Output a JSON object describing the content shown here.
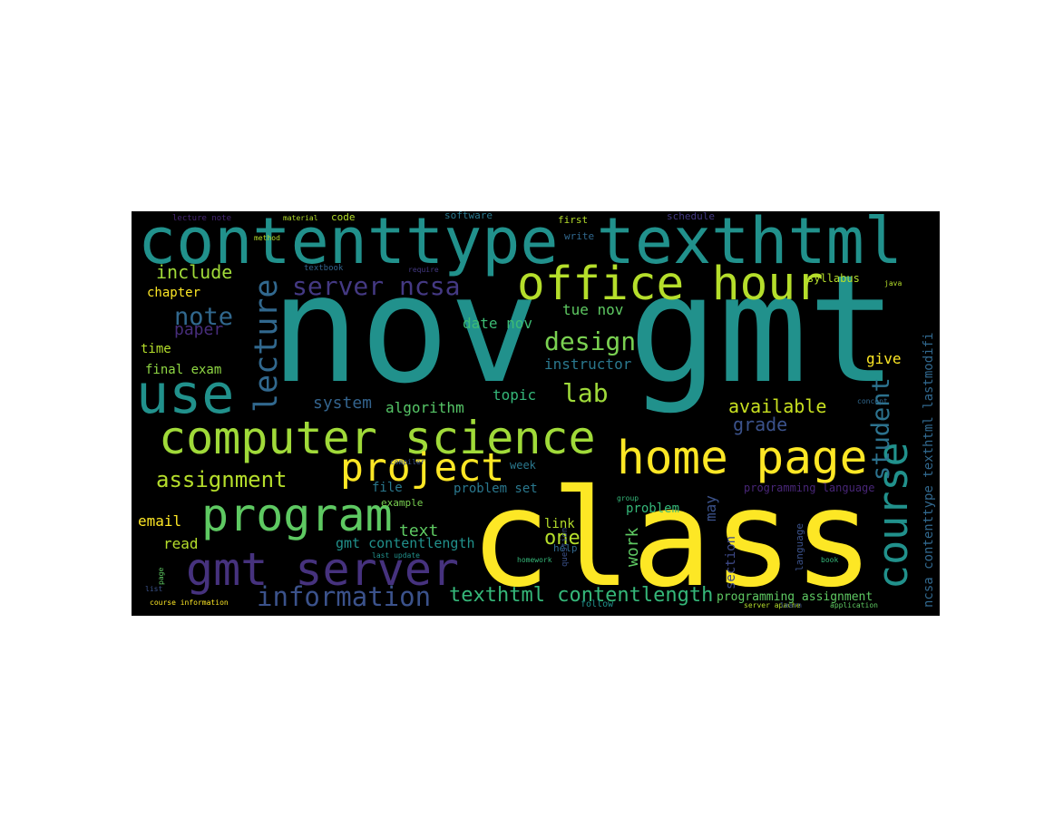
{
  "words": [
    {
      "text": "contenttype texthtml",
      "color": "#21918c"
    },
    {
      "text": "nov gmt",
      "color": "#21918c"
    },
    {
      "text": "class",
      "color": "#fde725"
    },
    {
      "text": "office hour",
      "color": "#b5de2b"
    },
    {
      "text": "computer science",
      "color": "#a0da39"
    },
    {
      "text": "home page",
      "color": "#fde725"
    },
    {
      "text": "program",
      "color": "#5ec962"
    },
    {
      "text": "gmt server",
      "color": "#46327e"
    },
    {
      "text": "use",
      "color": "#21918c"
    },
    {
      "text": "project",
      "color": "#fde725"
    },
    {
      "text": "information",
      "color": "#3b528b"
    },
    {
      "text": "server ncsa",
      "color": "#443983"
    },
    {
      "text": "lecture",
      "color": "#31688e"
    },
    {
      "text": "course",
      "color": "#21918c"
    },
    {
      "text": "student",
      "color": "#2c728e"
    },
    {
      "text": "ncsa contenttype texthtml lastmodifi",
      "color": "#31688e"
    },
    {
      "text": "note",
      "color": "#31688e"
    },
    {
      "text": "paper",
      "color": "#472d7b"
    },
    {
      "text": "include",
      "color": "#a0da39"
    },
    {
      "text": "chapter",
      "color": "#fde725"
    },
    {
      "text": "time",
      "color": "#b5de2b"
    },
    {
      "text": "final exam",
      "color": "#8fd744"
    },
    {
      "text": "design",
      "color": "#7ad151"
    },
    {
      "text": "lab",
      "color": "#9fda3a"
    },
    {
      "text": "tue nov",
      "color": "#5ec962"
    },
    {
      "text": "date nov",
      "color": "#3dbc74"
    },
    {
      "text": "instructor",
      "color": "#2a788e"
    },
    {
      "text": "system",
      "color": "#33638d"
    },
    {
      "text": "algorithm",
      "color": "#56c667"
    },
    {
      "text": "topic",
      "color": "#35b779"
    },
    {
      "text": "available",
      "color": "#c8e020"
    },
    {
      "text": "grade",
      "color": "#3b528b"
    },
    {
      "text": "assignment",
      "color": "#b5de2b"
    },
    {
      "text": "week",
      "color": "#2a788e"
    },
    {
      "text": "may",
      "color": "#3b528b"
    },
    {
      "text": "work",
      "color": "#5ec962"
    },
    {
      "text": "email",
      "color": "#fde725"
    },
    {
      "text": "read",
      "color": "#b5de2b"
    },
    {
      "text": "text",
      "color": "#5ec962"
    },
    {
      "text": "one",
      "color": "#b5de2b"
    },
    {
      "text": "gmt contentlength",
      "color": "#21918c"
    },
    {
      "text": "file",
      "color": "#2a788e"
    },
    {
      "text": "problem set",
      "color": "#2a788e"
    },
    {
      "text": "problem",
      "color": "#35b779"
    },
    {
      "text": "link",
      "color": "#b5de2b"
    },
    {
      "text": "section",
      "color": "#3e4a89"
    },
    {
      "text": "texthtml contentlength",
      "color": "#35b779"
    },
    {
      "text": "programming assignment",
      "color": "#5ec962"
    },
    {
      "text": "programming language",
      "color": "#482677"
    },
    {
      "text": "give",
      "color": "#fde725"
    },
    {
      "text": "example",
      "color": "#7ad151"
    },
    {
      "text": "code",
      "color": "#b5de2b"
    },
    {
      "text": "software",
      "color": "#2a788e"
    },
    {
      "text": "first",
      "color": "#b5de2b"
    },
    {
      "text": "syllabus",
      "color": "#b5de2b"
    },
    {
      "text": "schedule",
      "color": "#443983"
    },
    {
      "text": "write",
      "color": "#31688e"
    },
    {
      "text": "textbook",
      "color": "#33638d"
    },
    {
      "text": "course information",
      "color": "#fde725"
    },
    {
      "text": "lecture note",
      "color": "#482677"
    },
    {
      "text": "material",
      "color": "#b5de2b"
    },
    {
      "text": "follow",
      "color": "#21918c"
    },
    {
      "text": "application",
      "color": "#5ec962"
    },
    {
      "text": "server apache",
      "color": "#b5de2b"
    },
    {
      "text": "help",
      "color": "#31688e"
    },
    {
      "text": "language",
      "color": "#3b528b"
    },
    {
      "text": "java",
      "color": "#b5de2b"
    },
    {
      "text": "concept",
      "color": "#31688e"
    },
    {
      "text": "compiler",
      "color": "#3b528b"
    },
    {
      "text": "homework",
      "color": "#35b779"
    },
    {
      "text": "group",
      "color": "#35b779"
    },
    {
      "text": "learn",
      "color": "#3b528b"
    },
    {
      "text": "book",
      "color": "#35b779"
    },
    {
      "text": "page",
      "color": "#5ec962"
    },
    {
      "text": "list",
      "color": "#3b528b"
    },
    {
      "text": "method",
      "color": "#b5de2b"
    },
    {
      "text": "last update",
      "color": "#21918c"
    },
    {
      "text": "question",
      "color": "#3b528b"
    },
    {
      "text": "require",
      "color": "#443983"
    },
    {
      "text": "due",
      "color": "#2a788e"
    }
  ]
}
